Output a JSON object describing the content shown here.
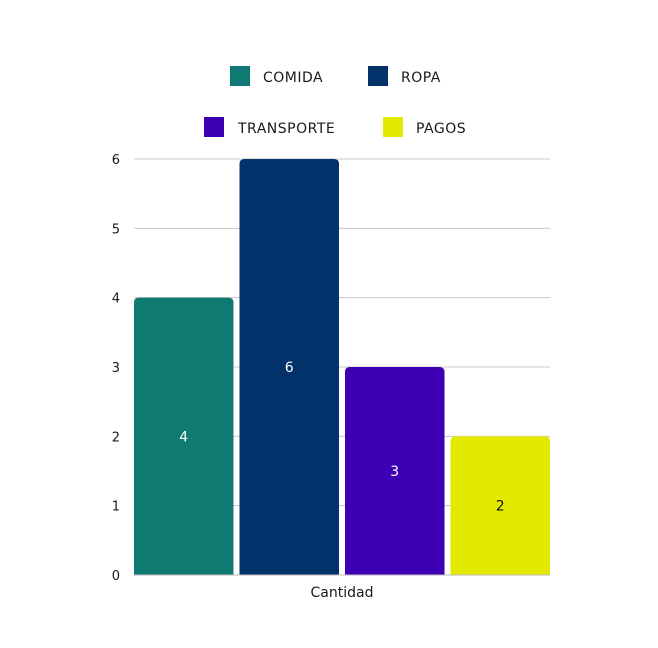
{
  "chart_data": {
    "type": "bar",
    "categories": [
      "Cantidad"
    ],
    "series": [
      {
        "name": "COMIDA",
        "values": [
          4
        ],
        "color": "#0e7a72"
      },
      {
        "name": "ROPA",
        "values": [
          6
        ],
        "color": "#03326b"
      },
      {
        "name": "TRANSPORTE",
        "values": [
          3
        ],
        "color": "#3d00b4"
      },
      {
        "name": "PAGOS",
        "values": [
          2
        ],
        "color": "#e3ea00"
      }
    ],
    "data_labels": [
      "4",
      "6",
      "3",
      "2"
    ],
    "data_label_colors": [
      "#ffffff",
      "#ffffff",
      "#ffffff",
      "#111111"
    ],
    "xlabel": "Cantidad",
    "ylabel": "",
    "ylim": [
      0,
      6
    ],
    "yticks": [
      "0",
      "1",
      "2",
      "3",
      "4",
      "5",
      "6"
    ],
    "grid": true,
    "legend_position": "top"
  }
}
